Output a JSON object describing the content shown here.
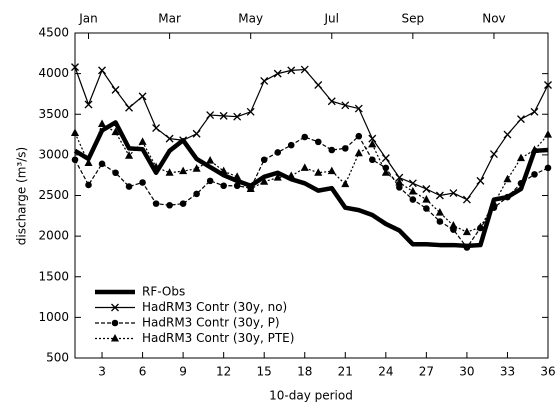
{
  "chart_data": {
    "type": "line",
    "xlabel": "10-day period",
    "ylabel": "discharge (m³/s)",
    "x": [
      1,
      2,
      3,
      4,
      5,
      6,
      7,
      8,
      9,
      10,
      11,
      12,
      13,
      14,
      15,
      16,
      17,
      18,
      19,
      20,
      21,
      22,
      23,
      24,
      25,
      26,
      27,
      28,
      29,
      30,
      31,
      32,
      33,
      34,
      35,
      36
    ],
    "xlim": [
      1,
      36
    ],
    "xticks": [
      3,
      6,
      9,
      12,
      15,
      18,
      21,
      24,
      27,
      30,
      33,
      36
    ],
    "x2ticks": [
      {
        "value": 2,
        "label": "Jan"
      },
      {
        "value": 8,
        "label": "Mar"
      },
      {
        "value": 14,
        "label": "May"
      },
      {
        "value": 20,
        "label": "Jul"
      },
      {
        "value": 26,
        "label": "Sep"
      },
      {
        "value": 32,
        "label": "Nov"
      }
    ],
    "ylim": [
      500,
      4500
    ],
    "yticks": [
      500,
      1000,
      1500,
      2000,
      2500,
      3000,
      3500,
      4000,
      4500
    ],
    "legend": "lower-left",
    "series": [
      {
        "name": "RF-Obs",
        "color": "#000000",
        "linewidth": 4.5,
        "dash": "solid",
        "marker": "none",
        "values": [
          3050,
          2950,
          3300,
          3400,
          3080,
          3070,
          2780,
          3050,
          3180,
          2950,
          2850,
          2750,
          2680,
          2620,
          2730,
          2780,
          2700,
          2650,
          2560,
          2590,
          2350,
          2320,
          2260,
          2150,
          2070,
          1900,
          1900,
          1890,
          1890,
          1880,
          1890,
          2450,
          2480,
          2580,
          3050,
          3060
        ]
      },
      {
        "name": "HadRM3 Contr (30y, no)",
        "color": "#000000",
        "linewidth": 1.2,
        "dash": "solid",
        "marker": "cross",
        "values": [
          4080,
          3620,
          4040,
          3800,
          3580,
          3720,
          3330,
          3200,
          3180,
          3260,
          3490,
          3480,
          3470,
          3530,
          3910,
          4000,
          4040,
          4050,
          3860,
          3660,
          3610,
          3570,
          3200,
          2960,
          2720,
          2650,
          2580,
          2500,
          2530,
          2450,
          2680,
          3010,
          3250,
          3440,
          3530,
          3860
        ]
      },
      {
        "name": "HadRM3 Contr (30y, P)",
        "color": "#000000",
        "linewidth": 1.2,
        "dash": "dashed",
        "marker": "circle",
        "values": [
          2940,
          2630,
          2890,
          2780,
          2610,
          2660,
          2400,
          2380,
          2400,
          2520,
          2680,
          2620,
          2620,
          2590,
          2940,
          3030,
          3120,
          3220,
          3160,
          3060,
          3080,
          3230,
          2940,
          2840,
          2600,
          2450,
          2340,
          2180,
          2080,
          1860,
          2100,
          2350,
          2480,
          2650,
          2760,
          2840
        ]
      },
      {
        "name": "HadRM3 Contr (30y, PTE)",
        "color": "#000000",
        "linewidth": 1.2,
        "dash": "dotted",
        "marker": "triangle",
        "values": [
          3270,
          2900,
          3380,
          3280,
          2990,
          3160,
          2850,
          2780,
          2800,
          2830,
          2930,
          2800,
          2730,
          2580,
          2670,
          2720,
          2740,
          2840,
          2780,
          2800,
          2640,
          3020,
          3130,
          2780,
          2660,
          2550,
          2450,
          2290,
          2130,
          2050,
          2110,
          2400,
          2700,
          2960,
          3060,
          3250
        ]
      }
    ]
  }
}
